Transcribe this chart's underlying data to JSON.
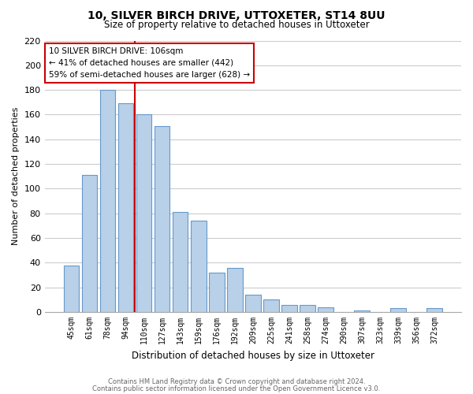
{
  "title": "10, SILVER BIRCH DRIVE, UTTOXETER, ST14 8UU",
  "subtitle": "Size of property relative to detached houses in Uttoxeter",
  "xlabel": "Distribution of detached houses by size in Uttoxeter",
  "ylabel": "Number of detached properties",
  "bar_labels": [
    "45sqm",
    "61sqm",
    "78sqm",
    "94sqm",
    "110sqm",
    "127sqm",
    "143sqm",
    "159sqm",
    "176sqm",
    "192sqm",
    "209sqm",
    "225sqm",
    "241sqm",
    "258sqm",
    "274sqm",
    "290sqm",
    "307sqm",
    "323sqm",
    "339sqm",
    "356sqm",
    "372sqm"
  ],
  "all_values": [
    38,
    111,
    180,
    169,
    160,
    151,
    81,
    74,
    32,
    36,
    14,
    10,
    6,
    6,
    4,
    0,
    1,
    0,
    3,
    0,
    3
  ],
  "bar_color": "#b8d0e8",
  "bar_edge_color": "#6699cc",
  "red_line_idx": 3,
  "red_line_color": "#cc0000",
  "ylim": [
    0,
    220
  ],
  "yticks": [
    0,
    20,
    40,
    60,
    80,
    100,
    120,
    140,
    160,
    180,
    200,
    220
  ],
  "annotation_title": "10 SILVER BIRCH DRIVE: 106sqm",
  "annotation_line1": "← 41% of detached houses are smaller (442)",
  "annotation_line2": "59% of semi-detached houses are larger (628) →",
  "annotation_box_facecolor": "#ffffff",
  "annotation_box_edgecolor": "#cc0000",
  "footer1": "Contains HM Land Registry data © Crown copyright and database right 2024.",
  "footer2": "Contains public sector information licensed under the Open Government Licence v3.0.",
  "bg_color": "#ffffff",
  "grid_color": "#cccccc"
}
